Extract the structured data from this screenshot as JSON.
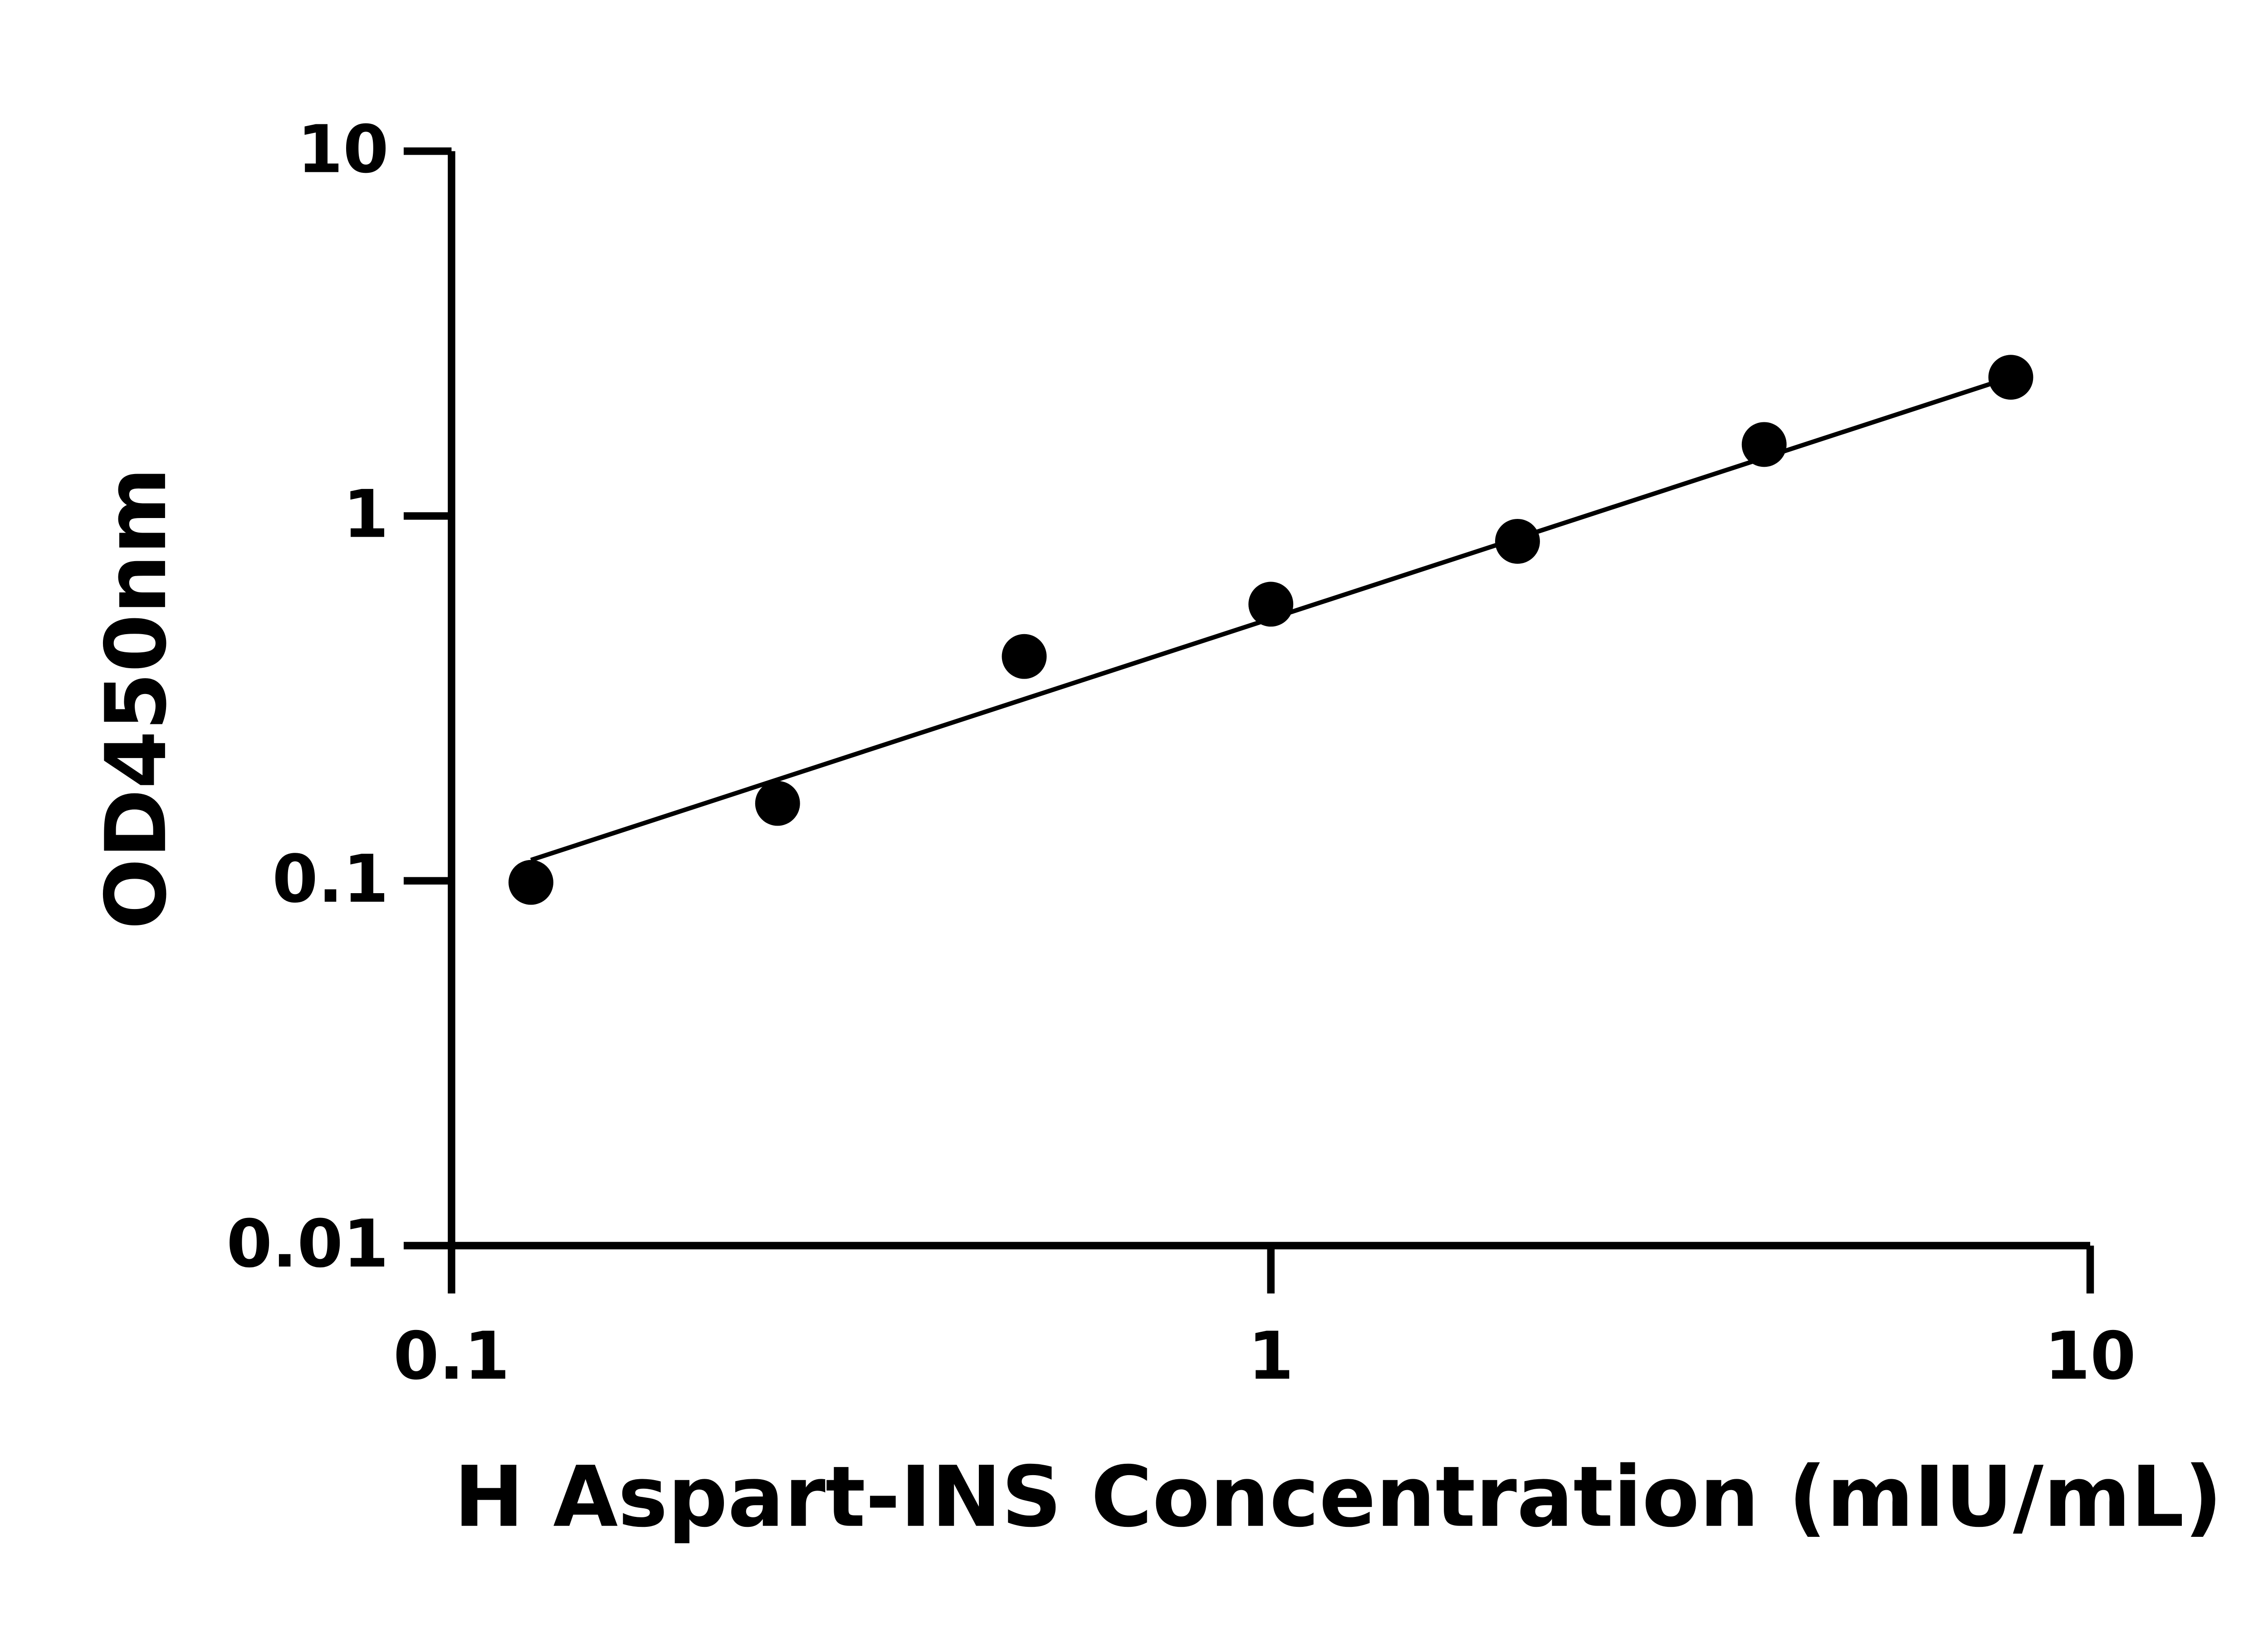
{
  "chart_data": {
    "type": "scatter",
    "xlabel": "H Aspart-INS Concentration (mIU/mL)",
    "ylabel": "OD450nm",
    "x": [
      0.125,
      0.25,
      0.5,
      1,
      2,
      4,
      8
    ],
    "values": [
      0.099,
      0.163,
      0.412,
      0.573,
      0.852,
      1.57,
      2.4
    ],
    "color": "#000000",
    "fit": {
      "x": [
        0.125,
        8
      ],
      "values": [
        0.114,
        2.4
      ]
    },
    "xlog": true,
    "ylog": true,
    "xlim": [
      0.1,
      10
    ],
    "ylim": [
      0.01,
      10
    ],
    "xticks": [
      0.1,
      1,
      10
    ],
    "yticks": [
      0.01,
      0.1,
      1,
      10
    ],
    "grid": false
  }
}
